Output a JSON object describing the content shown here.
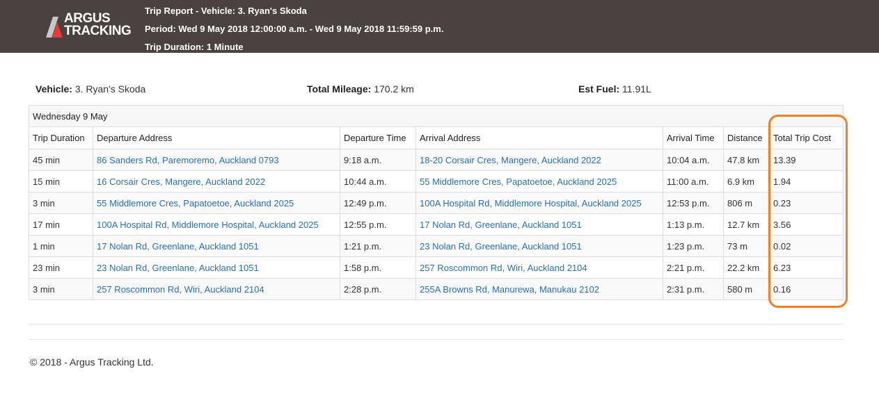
{
  "header": {
    "logo": {
      "line1": "ARGUS",
      "line2": "TRACKING"
    },
    "title": "Trip Report - Vehicle: 3. Ryan's Skoda",
    "period": "Period: Wed 9 May 2018 12:00:00 a.m. - Wed 9 May 2018 11:59:59 p.m.",
    "duration": "Trip Duration: 1 Minute",
    "background_color": "#4a4241"
  },
  "summary": {
    "vehicle_label": "Vehicle:",
    "vehicle_value": "3. Ryan's Skoda",
    "mileage_label": "Total Mileage:",
    "mileage_value": "170.2 km",
    "fuel_label": "Est Fuel:",
    "fuel_value": "11.91L"
  },
  "table": {
    "day_label": "Wednesday 9 May",
    "columns": [
      "Trip Duration",
      "Departure Address",
      "Departure Time",
      "Arrival Address",
      "Arrival Time",
      "Distance",
      "Total Trip Cost"
    ],
    "rows": [
      [
        "45 min",
        "86 Sanders Rd, Paremoremo, Auckland 0793",
        "9:18 a.m.",
        "18-20 Corsair Cres, Mangere, Auckland 2022",
        "10:04 a.m.",
        "47.8 km",
        "13.39"
      ],
      [
        "15 min",
        "16 Corsair Cres, Mangere, Auckland 2022",
        "10:44 a.m.",
        "55 Middlemore Cres, Papatoetoe, Auckland 2025",
        "11:00 a.m.",
        "6.9 km",
        "1.94"
      ],
      [
        "3 min",
        "55 Middlemore Cres, Papatoetoe, Auckland 2025",
        "12:49 p.m.",
        "100A Hospital Rd, Middlemore Hospital, Auckland 2025",
        "12:53 p.m.",
        "806 m",
        "0.23"
      ],
      [
        "17 min",
        "100A Hospital Rd, Middlemore Hospital, Auckland 2025",
        "12:55 p.m.",
        "17 Nolan Rd, Greenlane, Auckland 1051",
        "1:13 p.m.",
        "12.7 km",
        "3.56"
      ],
      [
        "1 min",
        "17 Nolan Rd, Greenlane, Auckland 1051",
        "1:21 p.m.",
        "23 Nolan Rd, Greenlane, Auckland 1051",
        "1:23 p.m.",
        "73 m",
        "0.02"
      ],
      [
        "23 min",
        "23 Nolan Rd, Greenlane, Auckland 1051",
        "1:58 p.m.",
        "257 Roscommon Rd, Wiri, Auckland 2104",
        "2:21 p.m.",
        "22.2 km",
        "6.23"
      ],
      [
        "3 min",
        "257 Roscommon Rd, Wiri, Auckland 2104",
        "2:28 p.m.",
        "255A Browns Rd, Manurewa, Manukau 2102",
        "2:31 p.m.",
        "580 m",
        "0.16"
      ]
    ],
    "link_color": "#2a6fb5",
    "highlight_color": "#f47e20"
  },
  "footer": {
    "copyright": "© 2018 - Argus Tracking Ltd."
  }
}
